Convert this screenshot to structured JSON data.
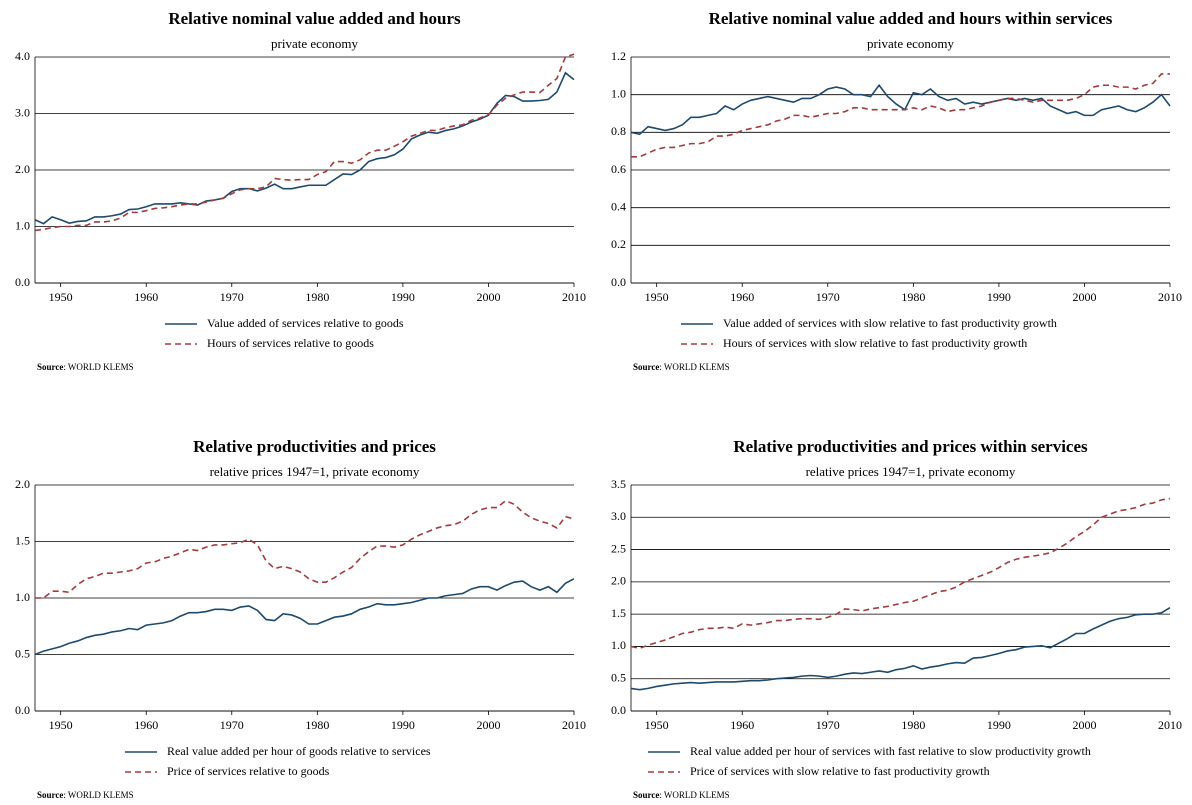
{
  "chart_data": [
    {
      "type": "line",
      "title": "Relative nominal value added and hours",
      "subtitle": "private economy",
      "x": [
        1947,
        1948,
        1949,
        1950,
        1951,
        1952,
        1953,
        1954,
        1955,
        1956,
        1957,
        1958,
        1959,
        1960,
        1961,
        1962,
        1963,
        1964,
        1965,
        1966,
        1967,
        1968,
        1969,
        1970,
        1971,
        1972,
        1973,
        1974,
        1975,
        1976,
        1977,
        1978,
        1979,
        1980,
        1981,
        1982,
        1983,
        1984,
        1985,
        1986,
        1987,
        1988,
        1989,
        1990,
        1991,
        1992,
        1993,
        1994,
        1995,
        1996,
        1997,
        1998,
        1999,
        2000,
        2001,
        2002,
        2003,
        2004,
        2005,
        2006,
        2007,
        2008,
        2009,
        2010
      ],
      "series": [
        {
          "name": "Value added of services relative to goods",
          "color": "#1f4a6e",
          "style": "solid",
          "values": [
            1.12,
            1.05,
            1.17,
            1.12,
            1.06,
            1.09,
            1.1,
            1.17,
            1.17,
            1.19,
            1.22,
            1.3,
            1.31,
            1.35,
            1.4,
            1.4,
            1.4,
            1.42,
            1.4,
            1.38,
            1.45,
            1.47,
            1.5,
            1.62,
            1.67,
            1.67,
            1.63,
            1.68,
            1.75,
            1.67,
            1.67,
            1.7,
            1.73,
            1.73,
            1.73,
            1.83,
            1.93,
            1.92,
            2.0,
            2.15,
            2.2,
            2.22,
            2.27,
            2.37,
            2.55,
            2.62,
            2.67,
            2.65,
            2.7,
            2.73,
            2.78,
            2.85,
            2.9,
            2.97,
            3.18,
            3.32,
            3.3,
            3.22,
            3.22,
            3.23,
            3.25,
            3.38,
            3.72,
            3.6
          ]
        },
        {
          "name": "Hours of services relative to goods",
          "color": "#a33b3e",
          "style": "dashed",
          "values": [
            0.93,
            0.95,
            0.98,
            1.0,
            1.0,
            1.02,
            1.02,
            1.08,
            1.08,
            1.1,
            1.15,
            1.25,
            1.25,
            1.28,
            1.32,
            1.33,
            1.35,
            1.38,
            1.4,
            1.4,
            1.43,
            1.47,
            1.5,
            1.58,
            1.65,
            1.67,
            1.67,
            1.7,
            1.85,
            1.83,
            1.82,
            1.83,
            1.83,
            1.92,
            1.97,
            2.15,
            2.15,
            2.12,
            2.18,
            2.3,
            2.35,
            2.35,
            2.42,
            2.5,
            2.6,
            2.65,
            2.7,
            2.7,
            2.75,
            2.78,
            2.8,
            2.88,
            2.92,
            2.98,
            3.15,
            3.27,
            3.33,
            3.38,
            3.38,
            3.37,
            3.5,
            3.62,
            4.0,
            4.05
          ]
        }
      ],
      "xlim": [
        1947,
        2010
      ],
      "xticks": [
        1950,
        1960,
        1970,
        1980,
        1990,
        2000,
        2010
      ],
      "ylim": [
        0,
        4
      ],
      "yticks": [
        {
          "value": 0,
          "label": "0.0"
        },
        {
          "value": 1,
          "label": "1.0"
        },
        {
          "value": 2,
          "label": "2.0"
        },
        {
          "value": 3,
          "label": "3.0"
        },
        {
          "value": 4,
          "label": "4.0"
        }
      ],
      "grid": true,
      "source_label": "Source",
      "source_text": ": WORLD KLEMS"
    },
    {
      "type": "line",
      "title": "Relative nominal value added and hours within services",
      "subtitle": "private economy",
      "x": [
        1947,
        1948,
        1949,
        1950,
        1951,
        1952,
        1953,
        1954,
        1955,
        1956,
        1957,
        1958,
        1959,
        1960,
        1961,
        1962,
        1963,
        1964,
        1965,
        1966,
        1967,
        1968,
        1969,
        1970,
        1971,
        1972,
        1973,
        1974,
        1975,
        1976,
        1977,
        1978,
        1979,
        1980,
        1981,
        1982,
        1983,
        1984,
        1985,
        1986,
        1987,
        1988,
        1989,
        1990,
        1991,
        1992,
        1993,
        1994,
        1995,
        1996,
        1997,
        1998,
        1999,
        2000,
        2001,
        2002,
        2003,
        2004,
        2005,
        2006,
        2007,
        2008,
        2009,
        2010
      ],
      "series": [
        {
          "name": "Value added of services with slow relative to fast productivity growth",
          "color": "#1f4a6e",
          "style": "solid",
          "values": [
            0.8,
            0.79,
            0.83,
            0.82,
            0.81,
            0.82,
            0.84,
            0.88,
            0.88,
            0.89,
            0.9,
            0.94,
            0.92,
            0.95,
            0.97,
            0.98,
            0.99,
            0.98,
            0.97,
            0.96,
            0.98,
            0.98,
            1.0,
            1.03,
            1.04,
            1.03,
            1.0,
            1.0,
            0.99,
            1.05,
            0.99,
            0.95,
            0.92,
            1.01,
            1.0,
            1.03,
            0.99,
            0.97,
            0.98,
            0.95,
            0.96,
            0.95,
            0.96,
            0.97,
            0.98,
            0.97,
            0.98,
            0.97,
            0.98,
            0.94,
            0.92,
            0.9,
            0.91,
            0.89,
            0.89,
            0.92,
            0.93,
            0.94,
            0.92,
            0.91,
            0.93,
            0.96,
            1.0,
            0.94
          ]
        },
        {
          "name": "Hours of services with slow relative to fast productivity growth",
          "color": "#a33b3e",
          "style": "dashed",
          "values": [
            0.67,
            0.67,
            0.69,
            0.71,
            0.72,
            0.72,
            0.73,
            0.74,
            0.74,
            0.75,
            0.78,
            0.78,
            0.79,
            0.81,
            0.82,
            0.83,
            0.84,
            0.86,
            0.87,
            0.89,
            0.89,
            0.88,
            0.89,
            0.9,
            0.9,
            0.91,
            0.93,
            0.93,
            0.92,
            0.92,
            0.92,
            0.92,
            0.92,
            0.93,
            0.92,
            0.94,
            0.93,
            0.91,
            0.92,
            0.92,
            0.93,
            0.94,
            0.96,
            0.97,
            0.98,
            0.98,
            0.97,
            0.96,
            0.97,
            0.97,
            0.97,
            0.97,
            0.98,
            1.0,
            1.04,
            1.05,
            1.05,
            1.04,
            1.04,
            1.03,
            1.05,
            1.06,
            1.11,
            1.11
          ]
        }
      ],
      "xlim": [
        1947,
        2010
      ],
      "xticks": [
        1950,
        1960,
        1970,
        1980,
        1990,
        2000,
        2010
      ],
      "ylim": [
        0,
        1.2
      ],
      "yticks": [
        {
          "value": 0,
          "label": "0.0"
        },
        0.2,
        0.4,
        0.6,
        0.8,
        {
          "value": 1,
          "label": "1.0"
        },
        1.2
      ],
      "grid": true,
      "source_label": "Source",
      "source_text": ": WORLD KLEMS"
    },
    {
      "type": "line",
      "title": "Relative productivities and prices",
      "subtitle": "relative prices 1947=1, private economy",
      "x": [
        1947,
        1948,
        1949,
        1950,
        1951,
        1952,
        1953,
        1954,
        1955,
        1956,
        1957,
        1958,
        1959,
        1960,
        1961,
        1962,
        1963,
        1964,
        1965,
        1966,
        1967,
        1968,
        1969,
        1970,
        1971,
        1972,
        1973,
        1974,
        1975,
        1976,
        1977,
        1978,
        1979,
        1980,
        1981,
        1982,
        1983,
        1984,
        1985,
        1986,
        1987,
        1988,
        1989,
        1990,
        1991,
        1992,
        1993,
        1994,
        1995,
        1996,
        1997,
        1998,
        1999,
        2000,
        2001,
        2002,
        2003,
        2004,
        2005,
        2006,
        2007,
        2008,
        2009,
        2010
      ],
      "series": [
        {
          "name": "Real value added per hour of goods relative to services",
          "color": "#1f4a6e",
          "style": "solid",
          "values": [
            0.5,
            0.53,
            0.55,
            0.57,
            0.6,
            0.62,
            0.65,
            0.67,
            0.68,
            0.7,
            0.71,
            0.73,
            0.72,
            0.76,
            0.77,
            0.78,
            0.8,
            0.84,
            0.87,
            0.87,
            0.88,
            0.9,
            0.9,
            0.89,
            0.92,
            0.93,
            0.89,
            0.81,
            0.8,
            0.86,
            0.85,
            0.82,
            0.77,
            0.77,
            0.8,
            0.83,
            0.84,
            0.86,
            0.9,
            0.92,
            0.95,
            0.94,
            0.94,
            0.95,
            0.96,
            0.98,
            1.0,
            1.0,
            1.02,
            1.03,
            1.04,
            1.08,
            1.1,
            1.1,
            1.07,
            1.11,
            1.14,
            1.15,
            1.1,
            1.07,
            1.1,
            1.05,
            1.13,
            1.17
          ]
        },
        {
          "name": "Price of services relative to goods",
          "color": "#a33b3e",
          "style": "dashed",
          "values": [
            1.0,
            1.0,
            1.06,
            1.06,
            1.05,
            1.12,
            1.17,
            1.19,
            1.22,
            1.22,
            1.23,
            1.24,
            1.26,
            1.31,
            1.32,
            1.35,
            1.37,
            1.4,
            1.43,
            1.42,
            1.45,
            1.47,
            1.47,
            1.48,
            1.49,
            1.52,
            1.47,
            1.33,
            1.26,
            1.28,
            1.26,
            1.23,
            1.17,
            1.14,
            1.14,
            1.18,
            1.23,
            1.27,
            1.35,
            1.41,
            1.46,
            1.46,
            1.45,
            1.47,
            1.52,
            1.56,
            1.59,
            1.62,
            1.64,
            1.65,
            1.68,
            1.74,
            1.78,
            1.8,
            1.8,
            1.86,
            1.83,
            1.76,
            1.71,
            1.68,
            1.66,
            1.62,
            1.72,
            1.7
          ]
        }
      ],
      "xlim": [
        1947,
        2010
      ],
      "xticks": [
        1950,
        1960,
        1970,
        1980,
        1990,
        2000,
        2010
      ],
      "ylim": [
        0,
        2
      ],
      "yticks": [
        {
          "value": 0,
          "label": "0.0"
        },
        0.5,
        {
          "value": 1,
          "label": "1.0"
        },
        1.5,
        {
          "value": 2,
          "label": "2.0"
        }
      ],
      "grid": true,
      "source_label": "Source",
      "source_text": ": WORLD KLEMS"
    },
    {
      "type": "line",
      "title": "Relative productivities and prices within services",
      "subtitle": "relative prices 1947=1, private economy",
      "x": [
        1947,
        1948,
        1949,
        1950,
        1951,
        1952,
        1953,
        1954,
        1955,
        1956,
        1957,
        1958,
        1959,
        1960,
        1961,
        1962,
        1963,
        1964,
        1965,
        1966,
        1967,
        1968,
        1969,
        1970,
        1971,
        1972,
        1973,
        1974,
        1975,
        1976,
        1977,
        1978,
        1979,
        1980,
        1981,
        1982,
        1983,
        1984,
        1985,
        1986,
        1987,
        1988,
        1989,
        1990,
        1991,
        1992,
        1993,
        1994,
        1995,
        1996,
        1997,
        1998,
        1999,
        2000,
        2001,
        2002,
        2003,
        2004,
        2005,
        2006,
        2007,
        2008,
        2009,
        2010
      ],
      "series": [
        {
          "name": "Real value added per hour of services with fast relative to slow productivity growth",
          "color": "#1f4a6e",
          "style": "solid",
          "values": [
            0.35,
            0.33,
            0.35,
            0.38,
            0.4,
            0.42,
            0.43,
            0.44,
            0.43,
            0.44,
            0.45,
            0.45,
            0.45,
            0.46,
            0.47,
            0.47,
            0.48,
            0.5,
            0.51,
            0.52,
            0.54,
            0.55,
            0.54,
            0.52,
            0.54,
            0.57,
            0.59,
            0.58,
            0.6,
            0.62,
            0.6,
            0.64,
            0.66,
            0.7,
            0.65,
            0.68,
            0.7,
            0.73,
            0.75,
            0.74,
            0.82,
            0.83,
            0.86,
            0.89,
            0.93,
            0.95,
            0.99,
            1.0,
            1.01,
            0.98,
            1.05,
            1.12,
            1.2,
            1.2,
            1.27,
            1.33,
            1.39,
            1.43,
            1.45,
            1.49,
            1.5,
            1.5,
            1.52,
            1.6
          ]
        },
        {
          "name": "Price of services with slow relative to fast productivity growth",
          "color": "#a33b3e",
          "style": "dashed",
          "values": [
            1.0,
            0.97,
            1.02,
            1.06,
            1.1,
            1.15,
            1.2,
            1.22,
            1.26,
            1.28,
            1.28,
            1.3,
            1.28,
            1.35,
            1.33,
            1.35,
            1.37,
            1.4,
            1.4,
            1.42,
            1.43,
            1.43,
            1.42,
            1.45,
            1.5,
            1.58,
            1.57,
            1.55,
            1.58,
            1.6,
            1.62,
            1.65,
            1.68,
            1.7,
            1.75,
            1.8,
            1.85,
            1.87,
            1.92,
            2.0,
            2.05,
            2.1,
            2.15,
            2.22,
            2.3,
            2.35,
            2.38,
            2.4,
            2.42,
            2.45,
            2.52,
            2.6,
            2.7,
            2.78,
            2.88,
            3.0,
            3.05,
            3.1,
            3.12,
            3.15,
            3.2,
            3.22,
            3.27,
            3.29
          ]
        }
      ],
      "xlim": [
        1947,
        2010
      ],
      "xticks": [
        1950,
        1960,
        1970,
        1980,
        1990,
        2000,
        2010
      ],
      "ylim": [
        0,
        3.5
      ],
      "yticks": [
        {
          "value": 0,
          "label": "0.0"
        },
        0.5,
        {
          "value": 1,
          "label": "1.0"
        },
        1.5,
        {
          "value": 2,
          "label": "2.0"
        },
        2.5,
        {
          "value": 3,
          "label": "3.0"
        },
        3.5
      ],
      "grid": true,
      "source_label": "Source",
      "source_text": ": WORLD KLEMS"
    }
  ]
}
